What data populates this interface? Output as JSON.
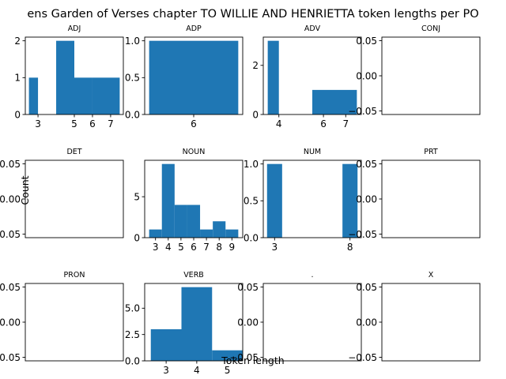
{
  "figure": {
    "title": "ens Garden of Verses chapter TO WILLIE AND HENRIETTA token lengths per PO",
    "xlabel": "Token length",
    "ylabel": "Count"
  },
  "colors": {
    "bar": "#1f77b4",
    "axis": "#000000",
    "background": "#ffffff"
  },
  "chart_data": [
    {
      "type": "bar",
      "title": "ADJ",
      "bins": [
        [
          2.5,
          3.0,
          1
        ],
        [
          3.0,
          3.5,
          0
        ],
        [
          3.5,
          4.0,
          0
        ],
        [
          4.0,
          5.0,
          2
        ],
        [
          5.0,
          6.0,
          1
        ],
        [
          6.0,
          7.5,
          1
        ]
      ],
      "xlim": [
        2.3,
        7.7
      ],
      "ylim": [
        0,
        2.1
      ],
      "xticks": [
        3,
        5,
        6,
        7
      ],
      "xtick_labels": [
        "3",
        "5",
        "6",
        "7"
      ],
      "yticks": [
        0,
        1,
        2
      ],
      "ytick_labels": [
        "0",
        "1",
        "2"
      ]
    },
    {
      "type": "bar",
      "title": "ADP",
      "bins": [
        [
          5.5,
          6.5,
          1
        ]
      ],
      "xlim": [
        5.45,
        6.55
      ],
      "ylim": [
        0,
        1.05
      ],
      "xticks": [
        6
      ],
      "xtick_labels": [
        "6"
      ],
      "yticks": [
        0,
        0.5,
        1.0
      ],
      "ytick_labels": [
        "0.0",
        "0.5",
        "1.0"
      ]
    },
    {
      "type": "bar",
      "title": "ADV",
      "bins": [
        [
          3.5,
          4.0,
          3
        ],
        [
          4.0,
          5.5,
          0
        ],
        [
          5.5,
          7.5,
          1
        ]
      ],
      "xlim": [
        3.3,
        7.7
      ],
      "ylim": [
        0,
        3.15
      ],
      "xticks": [
        4,
        6,
        7
      ],
      "xtick_labels": [
        "4",
        "6",
        "7"
      ],
      "yticks": [
        0,
        2
      ],
      "ytick_labels": [
        "0",
        "2"
      ]
    },
    {
      "type": "bar",
      "title": "CONJ",
      "bins": [],
      "xlim": [
        0,
        1
      ],
      "ylim": [
        -0.055,
        0.055
      ],
      "xticks": [],
      "xtick_labels": [],
      "yticks": [
        -0.05,
        0,
        0.05
      ],
      "ytick_labels": [
        "−0.05",
        "0.00",
        "0.05"
      ]
    },
    {
      "type": "bar",
      "title": "DET",
      "bins": [],
      "xlim": [
        0,
        1
      ],
      "ylim": [
        -0.055,
        0.055
      ],
      "xticks": [],
      "xtick_labels": [],
      "yticks": [
        -0.05,
        0,
        0.05
      ],
      "ytick_labels": [
        "−0.05",
        "0.00",
        "0.05"
      ]
    },
    {
      "type": "bar",
      "title": "NOUN",
      "bins": [
        [
          2.5,
          3.5,
          1
        ],
        [
          3.5,
          4.5,
          9
        ],
        [
          4.5,
          5.5,
          4
        ],
        [
          5.5,
          6.5,
          4
        ],
        [
          6.5,
          7.5,
          1
        ],
        [
          7.5,
          8.5,
          2
        ],
        [
          8.5,
          9.5,
          1
        ]
      ],
      "xlim": [
        2.15,
        9.85
      ],
      "ylim": [
        0,
        9.45
      ],
      "xticks": [
        3,
        4,
        5,
        6,
        7,
        8,
        9
      ],
      "xtick_labels": [
        "3",
        "4",
        "5",
        "6",
        "7",
        "8",
        "9"
      ],
      "yticks": [
        0,
        5
      ],
      "ytick_labels": [
        "0",
        "5"
      ]
    },
    {
      "type": "bar",
      "title": "NUM",
      "bins": [
        [
          2.5,
          3.5,
          1
        ],
        [
          3.5,
          7.5,
          0
        ],
        [
          7.5,
          8.5,
          1
        ]
      ],
      "xlim": [
        2.25,
        8.75
      ],
      "ylim": [
        0,
        1.05
      ],
      "xticks": [
        3,
        8
      ],
      "xtick_labels": [
        "3",
        "8"
      ],
      "yticks": [
        0,
        0.5,
        1.0
      ],
      "ytick_labels": [
        "0.0",
        "0.5",
        "1.0"
      ]
    },
    {
      "type": "bar",
      "title": "PRT",
      "bins": [],
      "xlim": [
        0,
        1
      ],
      "ylim": [
        -0.055,
        0.055
      ],
      "xticks": [],
      "xtick_labels": [],
      "yticks": [
        -0.05,
        0,
        0.05
      ],
      "ytick_labels": [
        "−0.05",
        "0.00",
        "0.05"
      ]
    },
    {
      "type": "bar",
      "title": "PRON",
      "bins": [],
      "xlim": [
        0,
        1
      ],
      "ylim": [
        -0.055,
        0.055
      ],
      "xticks": [],
      "xtick_labels": [],
      "yticks": [
        -0.05,
        0,
        0.05
      ],
      "ytick_labels": [
        "−0.05",
        "0.00",
        "0.05"
      ]
    },
    {
      "type": "bar",
      "title": "VERB",
      "bins": [
        [
          2.5,
          3.5,
          3
        ],
        [
          3.5,
          4.5,
          7
        ],
        [
          4.5,
          5.5,
          1
        ]
      ],
      "xlim": [
        2.3,
        5.5
      ],
      "ylim": [
        0,
        7.35
      ],
      "xticks": [
        3,
        4,
        5
      ],
      "xtick_labels": [
        "3",
        "4",
        "5"
      ],
      "yticks": [
        0,
        2.5,
        5.0
      ],
      "ytick_labels": [
        "0.0",
        "2.5",
        "5.0"
      ]
    },
    {
      "type": "bar",
      "title": ".",
      "bins": [],
      "xlim": [
        0,
        1
      ],
      "ylim": [
        -0.055,
        0.055
      ],
      "xticks": [],
      "xtick_labels": [],
      "yticks": [
        -0.05,
        0,
        0.05
      ],
      "ytick_labels": [
        "−0.05",
        "0.00",
        "0.05"
      ]
    },
    {
      "type": "bar",
      "title": "X",
      "bins": [],
      "xlim": [
        0,
        1
      ],
      "ylim": [
        -0.055,
        0.055
      ],
      "xticks": [],
      "xtick_labels": [],
      "yticks": [
        -0.05,
        0,
        0.05
      ],
      "ytick_labels": [
        "−0.05",
        "0.00",
        "0.05"
      ]
    }
  ]
}
